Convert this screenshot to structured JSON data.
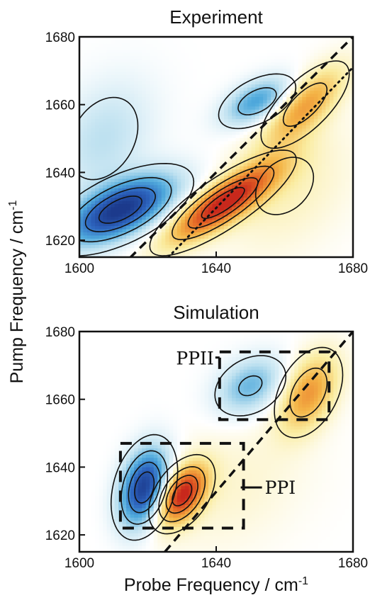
{
  "figure": {
    "ylabel": "Pump Frequency / cm",
    "ylabel_sup": "-1",
    "xlabel": "Probe Frequency / cm",
    "xlabel_sup": "-1"
  },
  "chart_data": [
    {
      "type": "heatmap",
      "title": "Experiment",
      "xlim": [
        1600,
        1680
      ],
      "ylim": [
        1615,
        1680
      ],
      "x_ticks": [
        1600,
        1640,
        1680
      ],
      "y_ticks": [
        1620,
        1640,
        1660,
        1680
      ],
      "colormap": {
        "negative": "#1c3a8c",
        "zero": "#ffffff",
        "positive": "#c8281c"
      },
      "diagonal": {
        "style": "dashed",
        "from": [
          1600,
          1600
        ],
        "to": [
          1680,
          1680
        ]
      },
      "antidiagonal_ridge": {
        "style": "dotted",
        "from": [
          1626,
          1615
        ],
        "to": [
          1680,
          1671
        ]
      },
      "peaks": [
        {
          "x": 1612,
          "y": 1629,
          "amp": -1.0,
          "sx": 11,
          "sy": 7,
          "rho": 0.6
        },
        {
          "x": 1652,
          "y": 1661,
          "amp": -0.55,
          "sx": 7,
          "sy": 5,
          "rho": 0.5
        },
        {
          "x": 1607,
          "y": 1650,
          "amp": -0.25,
          "sx": 10,
          "sy": 12,
          "rho": 0.3
        },
        {
          "x": 1642,
          "y": 1631,
          "amp": 1.0,
          "sx": 11,
          "sy": 8,
          "rho": 0.82
        },
        {
          "x": 1666,
          "y": 1660,
          "amp": 0.55,
          "sx": 8,
          "sy": 8,
          "rho": 0.7
        },
        {
          "x": 1660,
          "y": 1636,
          "amp": 0.18,
          "sx": 14,
          "sy": 14,
          "rho": 0.3
        }
      ]
    },
    {
      "type": "heatmap",
      "title": "Simulation",
      "xlim": [
        1600,
        1680
      ],
      "ylim": [
        1615,
        1680
      ],
      "x_ticks": [
        1600,
        1640,
        1680
      ],
      "y_ticks": [
        1620,
        1640,
        1660,
        1680
      ],
      "colormap": {
        "negative": "#1c3a8c",
        "zero": "#ffffff",
        "positive": "#c8281c"
      },
      "diagonal": {
        "style": "dashed",
        "from": [
          1625,
          1615
        ],
        "to": [
          1680,
          1680
        ]
      },
      "peaks": [
        {
          "x": 1619,
          "y": 1634,
          "amp": -1.0,
          "sx": 5,
          "sy": 8,
          "rho": 0.3
        },
        {
          "x": 1650,
          "y": 1664,
          "amp": -0.45,
          "sx": 7,
          "sy": 6,
          "rho": 0.3
        },
        {
          "x": 1630,
          "y": 1632,
          "amp": 1.0,
          "sx": 5,
          "sy": 6,
          "rho": 0.45
        },
        {
          "x": 1667,
          "y": 1662,
          "amp": 0.6,
          "sx": 6,
          "sy": 8,
          "rho": 0.4
        },
        {
          "x": 1644,
          "y": 1634,
          "amp": 0.12,
          "sx": 16,
          "sy": 14,
          "rho": 0.3
        }
      ],
      "regions": [
        {
          "label": "PPII",
          "x0": 1641,
          "x1": 1673,
          "y0": 1654,
          "y1": 1674
        },
        {
          "label": "PPI",
          "x0": 1612,
          "x1": 1648,
          "y0": 1622,
          "y1": 1647
        }
      ]
    }
  ]
}
